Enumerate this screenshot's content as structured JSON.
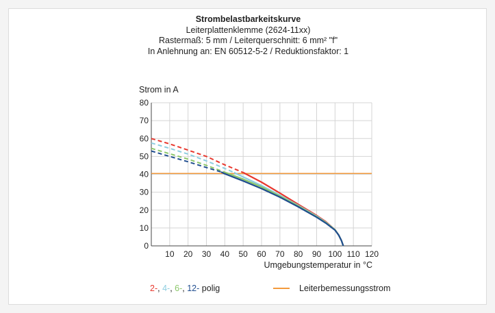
{
  "header": {
    "title": "Strombelastbarkeitskurve",
    "line2": "Leiterplattenklemme (2624-11xx)",
    "line3": "Rastermaß: 5 mm / Leiterquerschnitt: 6 mm² \"f\"",
    "line4": "In Anlehnung an: EN 60512-5-2 / Reduktionsfaktor: 1"
  },
  "legend": {
    "part_2": "2-",
    "sep1": ", ",
    "part_4": "4-",
    "sep2": ", ",
    "part_6": "6-",
    "sep3": ", ",
    "part_12": "12-",
    "suffix": " polig",
    "rated_current": "Leiterbemessungsstrom"
  },
  "chart_data": {
    "type": "line",
    "ylabel": "Strom in A",
    "xlabel": "Umgebungstemperatur in °C",
    "xlim": [
      0,
      120
    ],
    "ylim": [
      0,
      80
    ],
    "xticks": [
      10,
      20,
      30,
      40,
      50,
      60,
      70,
      80,
      90,
      100,
      110,
      120
    ],
    "yticks": [
      0,
      10,
      20,
      30,
      40,
      50,
      60,
      70,
      80
    ],
    "grid": true,
    "series": [
      {
        "name": "2-",
        "color": "#e8372d",
        "dashed": [
          [
            0,
            60
          ],
          [
            10,
            57
          ],
          [
            20,
            53.5
          ],
          [
            30,
            50
          ],
          [
            40,
            45.3
          ],
          [
            50,
            41
          ]
        ],
        "solid": [
          [
            50,
            41
          ],
          [
            60,
            35.6
          ],
          [
            70,
            29.5
          ],
          [
            80,
            23.2
          ],
          [
            90,
            17
          ],
          [
            95,
            13.5
          ],
          [
            100,
            9
          ],
          [
            102,
            6
          ],
          [
            103.5,
            3
          ],
          [
            104.5,
            0
          ]
        ]
      },
      {
        "name": "4-",
        "color": "#8dcde0",
        "dashed": [
          [
            0,
            57.5
          ],
          [
            10,
            54.5
          ],
          [
            20,
            51.3
          ],
          [
            30,
            47.5
          ],
          [
            40,
            43.3
          ],
          [
            45,
            41
          ]
        ],
        "solid": [
          [
            45,
            41
          ],
          [
            50,
            38.5
          ],
          [
            60,
            33.7
          ],
          [
            70,
            28.3
          ],
          [
            80,
            22.6
          ],
          [
            90,
            16.6
          ],
          [
            95,
            13.2
          ],
          [
            100,
            9
          ],
          [
            102,
            6
          ],
          [
            103.5,
            3
          ],
          [
            104.5,
            0
          ]
        ]
      },
      {
        "name": "6-",
        "color": "#8cc76a",
        "dashed": [
          [
            0,
            54.5
          ],
          [
            10,
            51.5
          ],
          [
            20,
            48.5
          ],
          [
            30,
            45
          ],
          [
            40,
            41.2
          ],
          [
            41,
            40.8
          ]
        ],
        "solid": [
          [
            41,
            40.8
          ],
          [
            50,
            37.3
          ],
          [
            60,
            32.9
          ],
          [
            70,
            27.8
          ],
          [
            80,
            22.3
          ],
          [
            90,
            16.3
          ],
          [
            95,
            13
          ],
          [
            100,
            9
          ],
          [
            102,
            6
          ],
          [
            103.5,
            3
          ],
          [
            104.5,
            0
          ]
        ]
      },
      {
        "name": "12-",
        "color": "#1f4d8f",
        "dashed": [
          [
            0,
            53
          ],
          [
            10,
            50
          ],
          [
            20,
            47
          ],
          [
            30,
            43.8
          ],
          [
            38,
            41.3
          ]
        ],
        "solid": [
          [
            38,
            41.3
          ],
          [
            40,
            40.3
          ],
          [
            50,
            36.3
          ],
          [
            60,
            32
          ],
          [
            70,
            27.2
          ],
          [
            80,
            21.8
          ],
          [
            90,
            16
          ],
          [
            95,
            12.7
          ],
          [
            100,
            8.8
          ],
          [
            102,
            6
          ],
          [
            103.5,
            3
          ],
          [
            104.5,
            0
          ]
        ]
      }
    ],
    "reference_line": {
      "name": "Leiterbemessungsstrom",
      "value": 40.5,
      "color": "#f39a3c"
    }
  }
}
